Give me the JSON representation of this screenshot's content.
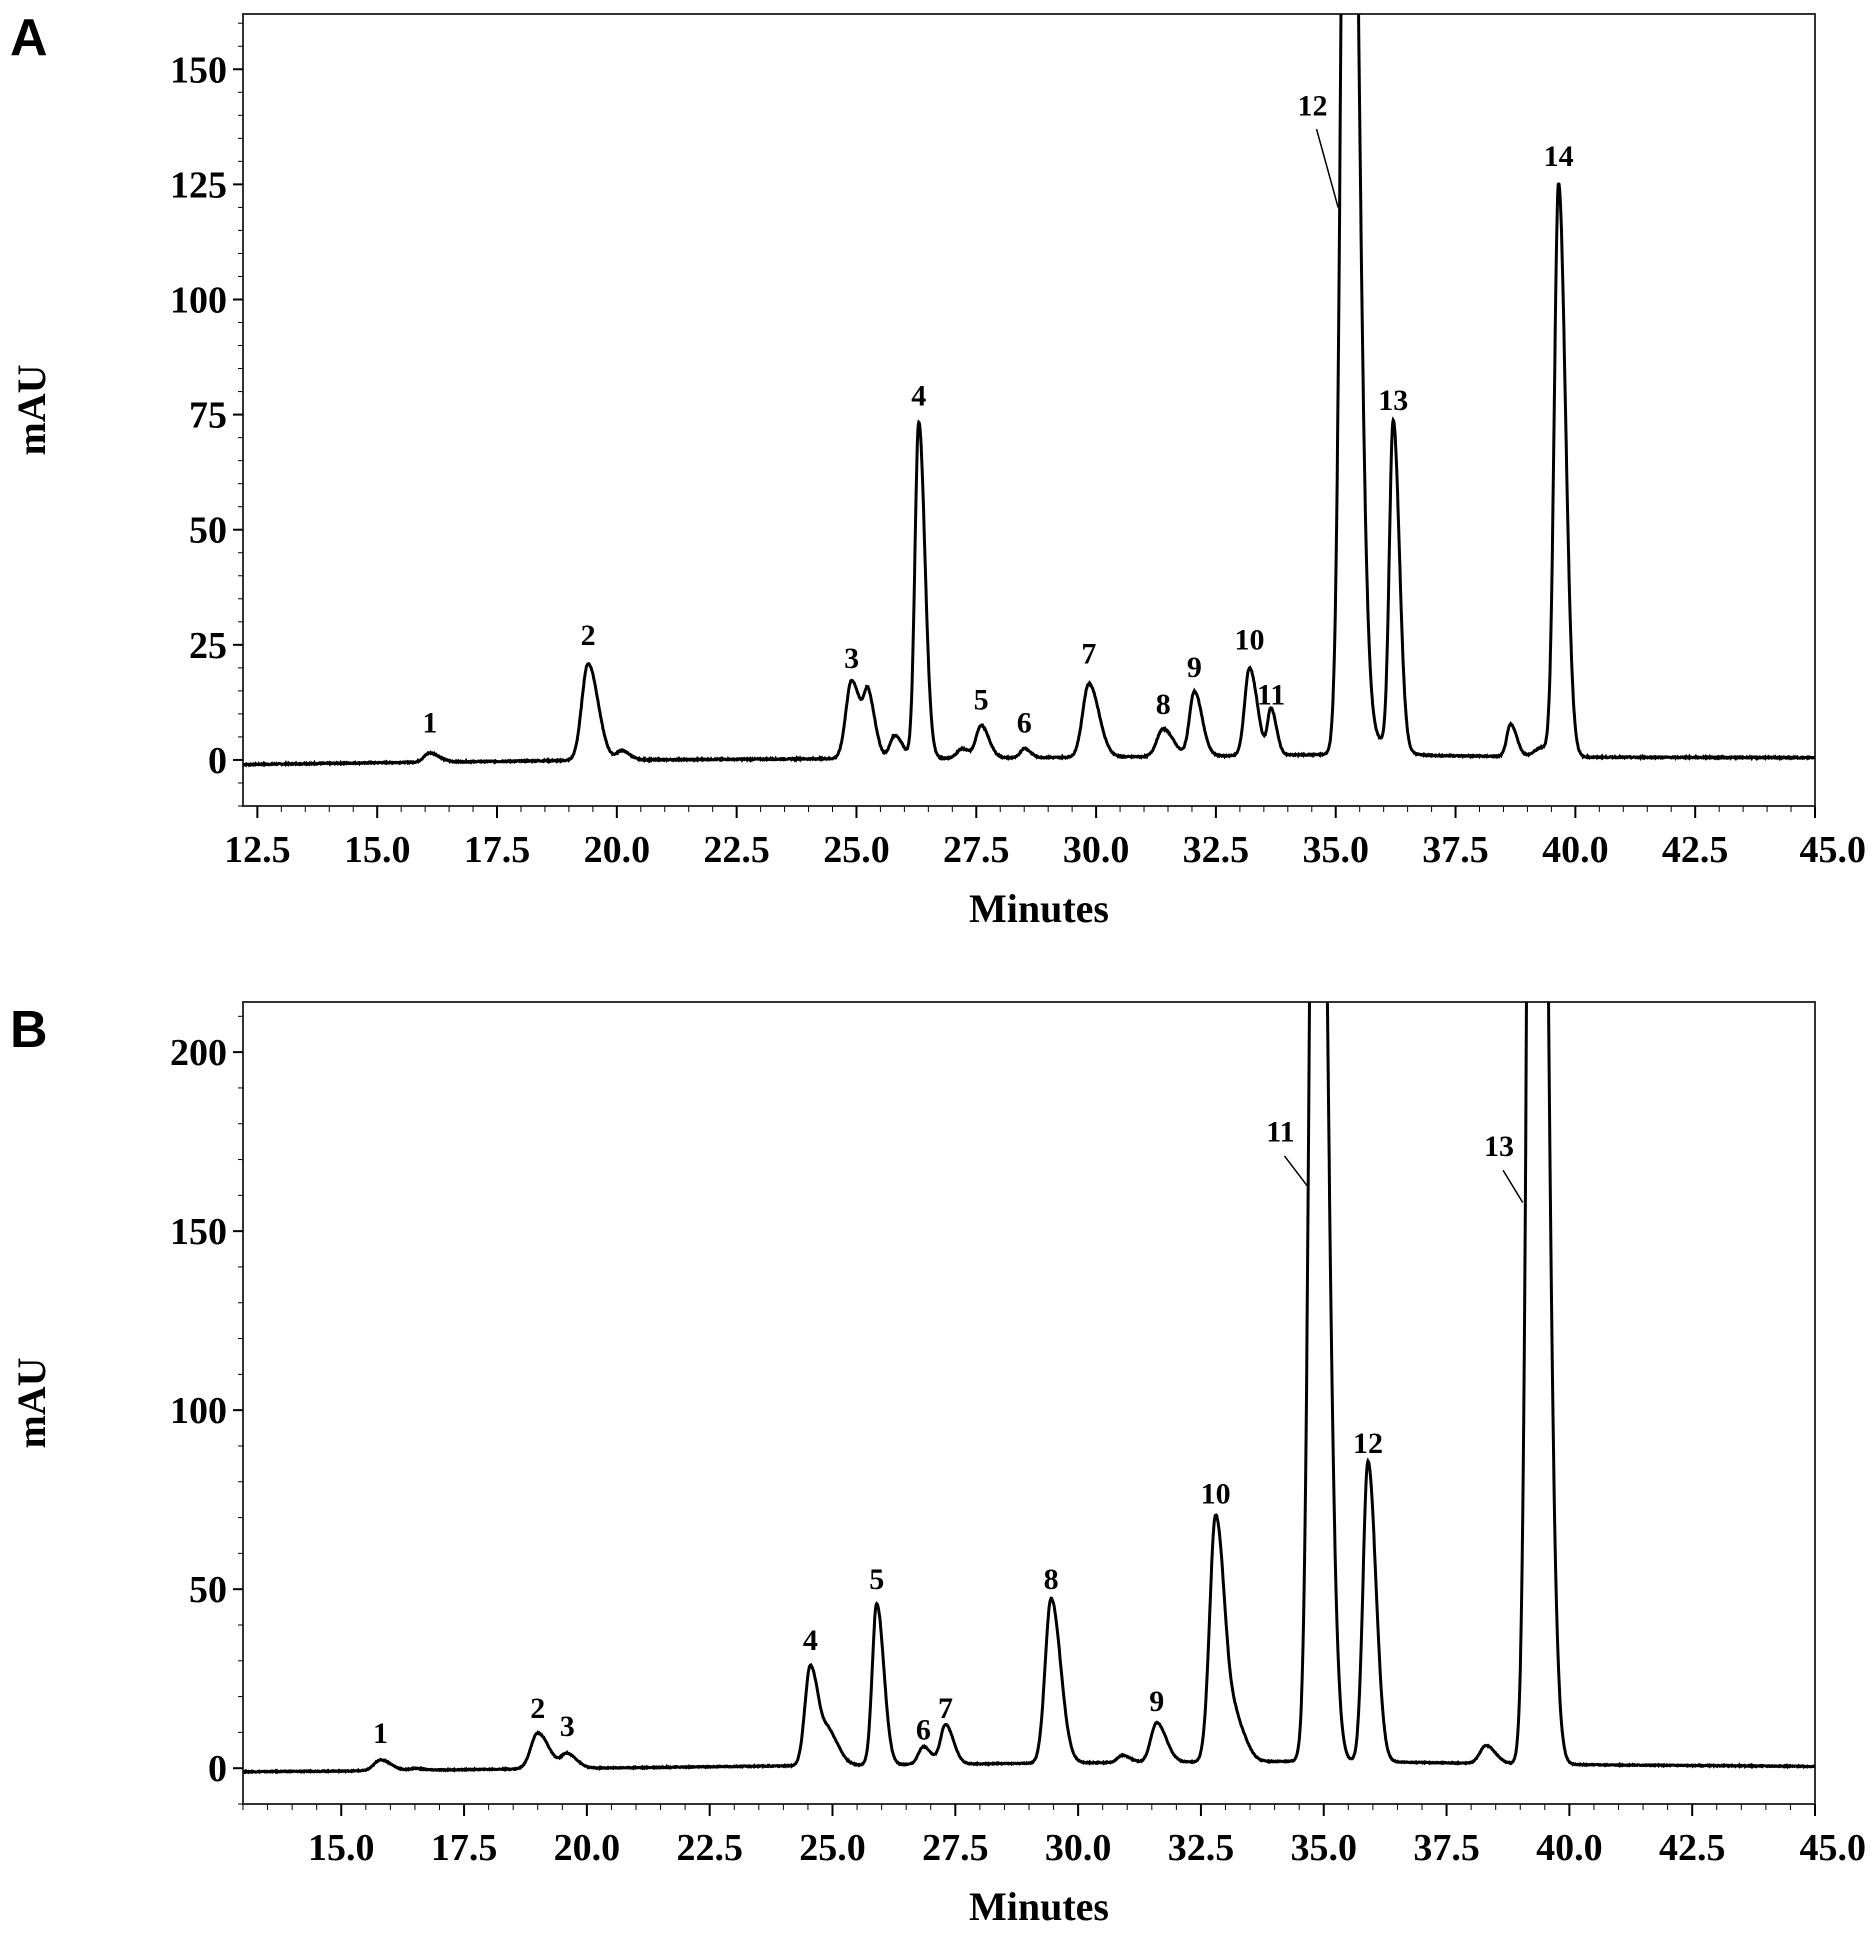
{
  "chart_data": [
    {
      "type": "line",
      "panel": "A",
      "xlabel": "Minutes",
      "ylabel": "mAU",
      "xlim": [
        12.2,
        45.0
      ],
      "ylim": [
        -10,
        162
      ],
      "xticks": [
        "12.5",
        "15.0",
        "17.5",
        "20.0",
        "22.5",
        "25.0",
        "27.5",
        "30.0",
        "32.5",
        "35.0",
        "37.5",
        "40.0",
        "42.5",
        "45.0"
      ],
      "yticks": [
        "0",
        "25",
        "50",
        "75",
        "100",
        "125",
        "150"
      ],
      "baseline": [
        [
          12.2,
          -1
        ],
        [
          15,
          -0.6
        ],
        [
          20,
          0
        ],
        [
          25,
          0.3
        ],
        [
          30,
          0.6
        ],
        [
          35,
          1.2
        ],
        [
          40,
          0.6
        ],
        [
          45,
          0.5
        ]
      ],
      "peaks": [
        {
          "label": "1",
          "x": 16.1,
          "height": 2,
          "width": 0.12,
          "label_y": 6
        },
        {
          "label": "2",
          "x": 19.4,
          "height": 21,
          "width": 0.13,
          "label_y": 25
        },
        {
          "label": "",
          "x": 20.1,
          "height": 2,
          "width": 0.1
        },
        {
          "label": "3",
          "x": 24.9,
          "height": 17,
          "width": 0.12,
          "label_y": 20
        },
        {
          "label": "",
          "x": 25.25,
          "height": 12,
          "width": 0.09
        },
        {
          "label": "",
          "x": 25.8,
          "height": 5,
          "width": 0.1
        },
        {
          "label": "4",
          "x": 26.3,
          "height": 73,
          "width": 0.08,
          "label_y": 77
        },
        {
          "label": "",
          "x": 27.2,
          "height": 2,
          "width": 0.1
        },
        {
          "label": "5",
          "x": 27.6,
          "height": 7,
          "width": 0.1,
          "label_y": 11
        },
        {
          "label": "6",
          "x": 28.5,
          "height": 2,
          "width": 0.08,
          "label_y": 6
        },
        {
          "label": "7",
          "x": 29.85,
          "height": 16,
          "width": 0.13,
          "label_y": 21
        },
        {
          "label": "8",
          "x": 31.4,
          "height": 6,
          "width": 0.13,
          "label_y": 10
        },
        {
          "label": "9",
          "x": 32.05,
          "height": 14,
          "width": 0.1,
          "label_y": 18
        },
        {
          "label": "10",
          "x": 33.2,
          "height": 19,
          "width": 0.1,
          "label_y": 24
        },
        {
          "label": "11",
          "x": 33.65,
          "height": 10,
          "width": 0.07,
          "label_y": 12
        },
        {
          "label": "12",
          "x": 35.25,
          "height": 320,
          "width": 0.12,
          "label_y": 140,
          "leader": [
            [
              34.6,
              137
            ],
            [
              35.05,
              120
            ]
          ]
        },
        {
          "label": "",
          "x": 35.8,
          "height": 3,
          "width": 0.25
        },
        {
          "label": "13",
          "x": 36.2,
          "height": 71,
          "width": 0.08,
          "label_y": 76
        },
        {
          "label": "",
          "x": 38.65,
          "height": 7,
          "width": 0.08
        },
        {
          "label": "",
          "x": 39.3,
          "height": 2,
          "width": 0.15
        },
        {
          "label": "14",
          "x": 39.65,
          "height": 124,
          "width": 0.09,
          "label_y": 129
        }
      ]
    },
    {
      "type": "line",
      "panel": "B",
      "xlabel": "Minutes",
      "ylabel": "mAU",
      "xlim": [
        13.0,
        45.0
      ],
      "ylim": [
        -10,
        214
      ],
      "xticks": [
        "15.0",
        "17.5",
        "20.0",
        "22.5",
        "25.0",
        "27.5",
        "30.0",
        "32.5",
        "35.0",
        "37.5",
        "40.0",
        "42.5",
        "45.0"
      ],
      "yticks": [
        "0",
        "50",
        "100",
        "150",
        "200"
      ],
      "baseline": [
        [
          13,
          -1
        ],
        [
          15,
          -0.8
        ],
        [
          20,
          0
        ],
        [
          25,
          0.8
        ],
        [
          30,
          1.5
        ],
        [
          35,
          2
        ],
        [
          40,
          1
        ],
        [
          45,
          0.5
        ]
      ],
      "peaks": [
        {
          "label": "1",
          "x": 15.8,
          "height": 3,
          "width": 0.13,
          "label_y": 7
        },
        {
          "label": "",
          "x": 16.5,
          "height": 0.5,
          "width": 0.1
        },
        {
          "label": "2",
          "x": 19.0,
          "height": 10,
          "width": 0.14,
          "label_y": 14
        },
        {
          "label": "3",
          "x": 19.6,
          "height": 4,
          "width": 0.12,
          "label_y": 9
        },
        {
          "label": "4",
          "x": 24.55,
          "height": 28,
          "width": 0.11,
          "label_y": 33
        },
        {
          "label": "",
          "x": 24.95,
          "height": 8,
          "width": 0.12
        },
        {
          "label": "5",
          "x": 25.9,
          "height": 45,
          "width": 0.09,
          "label_y": 50
        },
        {
          "label": "6",
          "x": 26.85,
          "height": 5,
          "width": 0.1,
          "label_y": 8
        },
        {
          "label": "7",
          "x": 27.3,
          "height": 11,
          "width": 0.1,
          "label_y": 14
        },
        {
          "label": "8",
          "x": 29.45,
          "height": 46,
          "width": 0.12,
          "label_y": 50
        },
        {
          "label": "",
          "x": 30.9,
          "height": 2,
          "width": 0.1
        },
        {
          "label": "9",
          "x": 31.6,
          "height": 11,
          "width": 0.12,
          "label_y": 16
        },
        {
          "label": "10",
          "x": 32.8,
          "height": 69,
          "width": 0.12,
          "label_y": 74
        },
        {
          "label": "",
          "x": 33.25,
          "height": 9,
          "width": 0.12
        },
        {
          "label": "11",
          "x": 34.85,
          "height": 420,
          "width": 0.12,
          "label_y": 175,
          "leader": [
            [
              34.2,
              171
            ],
            [
              34.7,
              162
            ]
          ]
        },
        {
          "label": "12",
          "x": 35.9,
          "height": 84,
          "width": 0.1,
          "label_y": 88
        },
        {
          "label": "",
          "x": 38.3,
          "height": 5,
          "width": 0.12
        },
        {
          "label": "13",
          "x": 39.3,
          "height": 600,
          "width": 0.12,
          "label_y": 171,
          "leader": [
            [
              38.65,
              167
            ],
            [
              39.05,
              158
            ]
          ]
        }
      ]
    }
  ],
  "panels": {
    "a_letter": "A",
    "b_letter": "B"
  },
  "colors": {
    "line": "#000000",
    "background": "#ffffff"
  }
}
